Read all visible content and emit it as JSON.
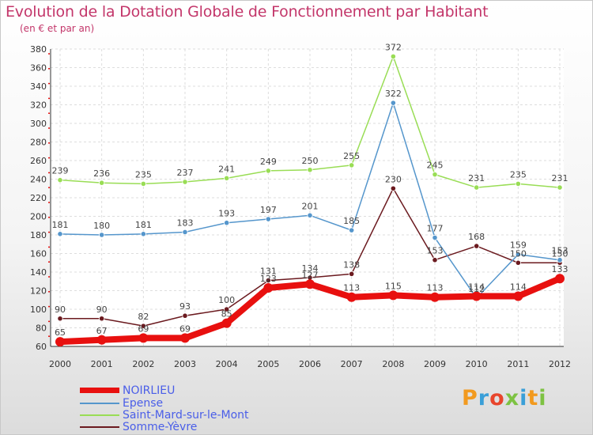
{
  "title": "Evolution de la Dotation Globale de Fonctionnement par Habitant",
  "subtitle": "(en € et par an)",
  "brand": "Proxiti",
  "brand_colors": [
    "#f29a1f",
    "#3a9fd8",
    "#e8452c",
    "#7dc242",
    "#3a9fd8",
    "#f29a1f",
    "#7dc242"
  ],
  "chart_data": {
    "type": "line",
    "x": [
      "2000",
      "2001",
      "2002",
      "2003",
      "2004",
      "2005",
      "2006",
      "2007",
      "2008",
      "2009",
      "2010",
      "2011",
      "2012"
    ],
    "ylim": [
      60,
      380
    ],
    "yticks": [
      60,
      80,
      100,
      120,
      140,
      160,
      180,
      200,
      220,
      240,
      260,
      280,
      300,
      320,
      340,
      360,
      380
    ],
    "grid": true,
    "legend_position": "bottom-left",
    "series": [
      {
        "name": "NOIRLIEU",
        "color": "#e8100f",
        "width": 8,
        "values": [
          65,
          67,
          69,
          69,
          85,
          123,
          127,
          113,
          115,
          113,
          114,
          114,
          133
        ],
        "labels": [
          "65",
          "67",
          "69",
          "69",
          "85",
          "123",
          "127",
          "113",
          "115",
          "113",
          "114",
          "114",
          "133"
        ]
      },
      {
        "name": "Epense",
        "color": "#5596cc",
        "width": 1.5,
        "values": [
          181,
          180,
          181,
          183,
          193,
          197,
          201,
          185,
          322,
          177,
          112,
          159,
          153
        ],
        "labels": [
          "181",
          "180",
          "181",
          "183",
          "193",
          "197",
          "201",
          "185",
          "322",
          "177",
          "112",
          "159",
          "153"
        ]
      },
      {
        "name": "Saint-Mard-sur-le-Mont",
        "color": "#99dd55",
        "width": 1.5,
        "values": [
          239,
          236,
          235,
          237,
          241,
          249,
          250,
          255,
          372,
          245,
          231,
          235,
          231
        ],
        "labels": [
          "239",
          "236",
          "235",
          "237",
          "241",
          "249",
          "250",
          "255",
          "372",
          "245",
          "231",
          "235",
          "231"
        ]
      },
      {
        "name": "Somme-Yèvre",
        "color": "#6b1a1f",
        "width": 1.5,
        "values": [
          90,
          90,
          82,
          93,
          100,
          131,
          134,
          138,
          230,
          153,
          168,
          150,
          150
        ],
        "labels": [
          "90",
          "90",
          "82",
          "93",
          "100",
          "131",
          "134",
          "138",
          "230",
          "153",
          "168",
          "150",
          "150"
        ]
      }
    ]
  }
}
